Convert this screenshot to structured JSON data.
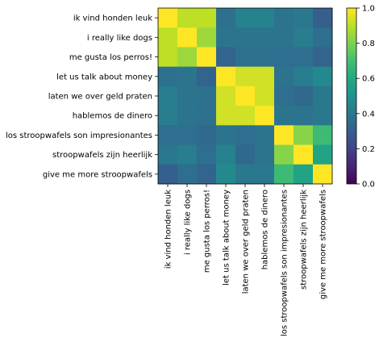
{
  "chart_data": {
    "type": "heatmap",
    "title": "",
    "xlabel": "",
    "ylabel": "",
    "categories": [
      "ik vind honden leuk",
      "i really like dogs",
      "me gusta los perros!",
      "let us talk about money",
      "laten we over geld praten",
      "hablemos de dinero",
      "los stroopwafels son impresionantes",
      "stroopwafels zijn heerlijk",
      "give me more stroopwafels"
    ],
    "values": [
      [
        1.0,
        0.9,
        0.9,
        0.37,
        0.44,
        0.44,
        0.38,
        0.4,
        0.3
      ],
      [
        0.9,
        1.0,
        0.85,
        0.38,
        0.38,
        0.38,
        0.38,
        0.42,
        0.36
      ],
      [
        0.9,
        0.85,
        1.0,
        0.32,
        0.37,
        0.37,
        0.36,
        0.36,
        0.32
      ],
      [
        0.37,
        0.38,
        0.32,
        1.0,
        0.93,
        0.93,
        0.38,
        0.42,
        0.47
      ],
      [
        0.42,
        0.38,
        0.37,
        0.93,
        1.0,
        0.93,
        0.36,
        0.34,
        0.4
      ],
      [
        0.42,
        0.38,
        0.37,
        0.93,
        0.93,
        1.0,
        0.38,
        0.38,
        0.4
      ],
      [
        0.36,
        0.36,
        0.34,
        0.38,
        0.36,
        0.38,
        1.0,
        0.82,
        0.68
      ],
      [
        0.4,
        0.42,
        0.36,
        0.44,
        0.34,
        0.38,
        0.82,
        1.0,
        0.58
      ],
      [
        0.3,
        0.36,
        0.32,
        0.47,
        0.4,
        0.4,
        0.68,
        0.58,
        1.0
      ]
    ],
    "colorscale": "viridis",
    "colorbar": {
      "range": [
        0.0,
        1.0
      ],
      "ticks": [
        "0.0",
        "0.2",
        "0.4",
        "0.6",
        "0.8",
        "1.0"
      ]
    }
  }
}
